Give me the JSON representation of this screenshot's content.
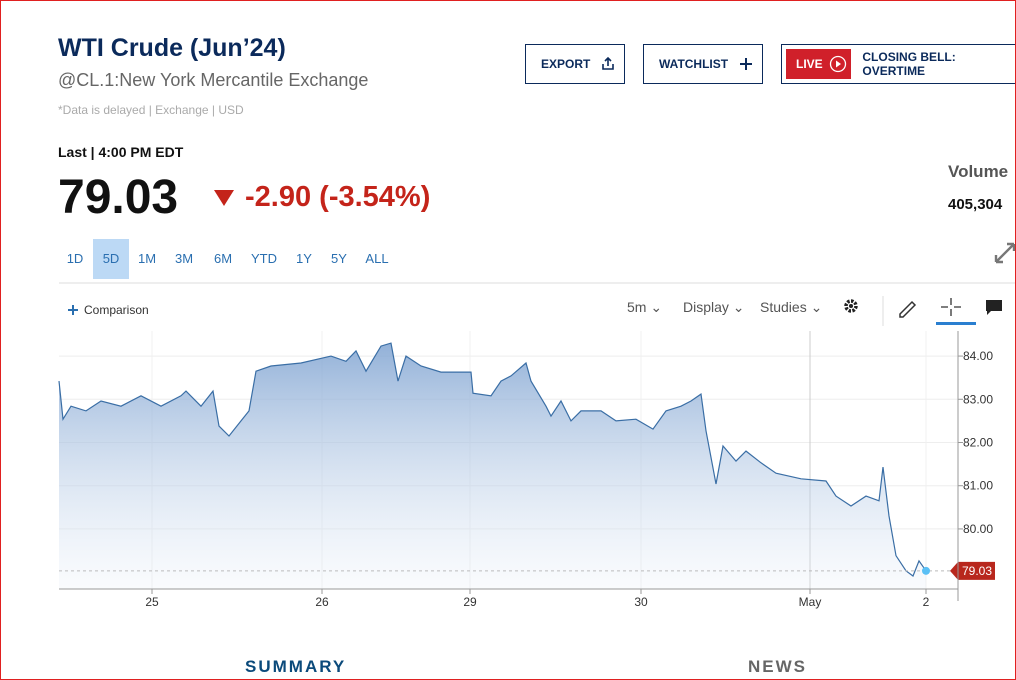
{
  "header": {
    "title": "WTI Crude (Jun’24)",
    "exchange": "@CL.1:New York Mercantile Exchange",
    "note": "*Data is delayed | Exchange | USD",
    "export": "EXPORT",
    "watchlist": "WATCHLIST",
    "live": "LIVE",
    "closing": "CLOSING BELL: OVERTIME"
  },
  "quote": {
    "last_label": "Last | 4:00 PM EDT",
    "price": "79.03",
    "change": "-2.90 (-3.54%)",
    "volume_label": "Volume",
    "volume": "405,304"
  },
  "ranges": [
    "1D",
    "5D",
    "1M",
    "3M",
    "6M",
    "YTD",
    "1Y",
    "5Y",
    "ALL"
  ],
  "active_range": 1,
  "toolbar": {
    "comparison": "Comparison",
    "interval": "5m",
    "display": "Display",
    "studies": "Studies"
  },
  "chart_data": {
    "type": "line",
    "color": "#3a6ea5",
    "grid": true,
    "x": [
      0,
      4,
      12,
      27,
      42,
      62,
      82,
      102,
      122,
      127,
      142,
      154,
      160,
      170,
      182,
      190,
      197,
      212,
      242,
      272,
      287,
      297,
      307,
      322,
      332,
      339,
      347,
      362,
      382,
      412,
      414,
      432,
      442,
      452,
      467,
      472,
      487,
      492,
      502,
      512,
      522,
      542,
      557,
      577,
      594,
      607,
      622,
      632,
      642,
      647,
      657,
      664,
      677,
      687,
      702,
      717,
      742,
      767,
      777,
      792,
      807,
      820,
      824,
      830,
      837,
      847,
      854,
      860,
      867
    ],
    "values": [
      83.42,
      82.54,
      82.84,
      82.73,
      82.96,
      82.84,
      83.08,
      82.84,
      83.08,
      83.19,
      82.84,
      83.19,
      82.38,
      82.15,
      82.5,
      82.73,
      83.65,
      83.77,
      83.84,
      84.0,
      83.88,
      84.12,
      83.65,
      84.23,
      84.3,
      83.42,
      84.0,
      83.77,
      83.63,
      83.63,
      83.14,
      83.08,
      83.42,
      83.54,
      83.84,
      83.42,
      82.84,
      82.61,
      82.96,
      82.5,
      82.73,
      82.73,
      82.5,
      82.54,
      82.31,
      82.73,
      82.84,
      82.96,
      83.12,
      82.27,
      81.04,
      81.92,
      81.57,
      81.8,
      81.53,
      81.29,
      81.16,
      81.11,
      80.76,
      80.53,
      80.76,
      80.65,
      81.43,
      80.3,
      79.38,
      79.03,
      78.91,
      79.26,
      79.03
    ],
    "xlim": [
      0,
      899
    ],
    "xticks": [
      {
        "value": 93,
        "label": "25"
      },
      {
        "value": 263,
        "label": "26"
      },
      {
        "value": 411,
        "label": "29"
      },
      {
        "value": 582,
        "label": "30"
      },
      {
        "value": 751,
        "label": "May"
      },
      {
        "value": 867,
        "label": "2"
      }
    ],
    "ylim": [
      78.61,
      84.58
    ],
    "yticks": [
      {
        "value": 80,
        "label": "80.00"
      },
      {
        "value": 81,
        "label": "81.00"
      },
      {
        "value": 82,
        "label": "82.00"
      },
      {
        "value": 83,
        "label": "83.00"
      },
      {
        "value": 84,
        "label": "84.00"
      }
    ]
  },
  "tabs": [
    "SUMMARY",
    "NEWS"
  ]
}
